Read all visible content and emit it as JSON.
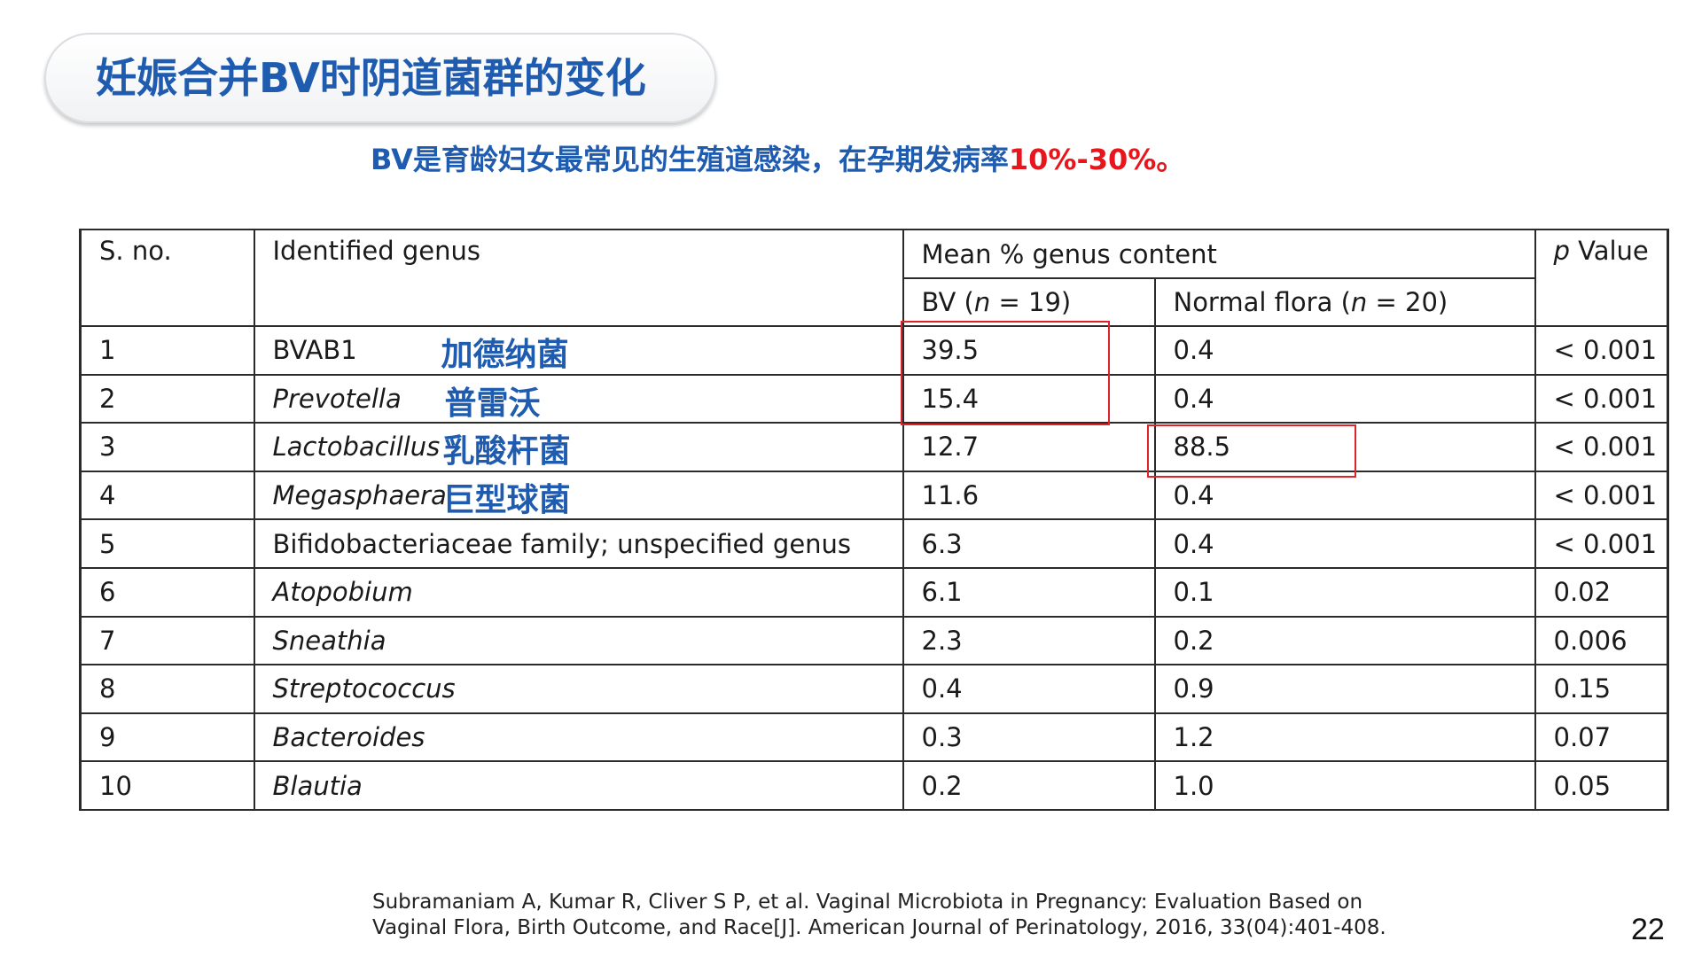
{
  "slide": {
    "title": "妊娠合并BV时阴道菌群的变化",
    "subtitle_main": "BV是育龄妇女最常见的生殖道感染，在孕期发病率",
    "subtitle_highlight": "10%-30%。",
    "page_number": "22",
    "citation_line1": "Subramaniam A, Kumar R, Cliver S P, et al. Vaginal Microbiota in Pregnancy: Evaluation Based on",
    "citation_line2": "Vaginal Flora, Birth Outcome, and Race[J]. American Journal of Perinatology, 2016, 33(04):401-408."
  },
  "table": {
    "headers": {
      "sno": "S. no.",
      "genus": "Identified genus",
      "mean": "Mean % genus content",
      "bv_pre": "BV (",
      "bv_n": "n",
      "bv_post": " = 19)",
      "nf_pre": "Normal flora (",
      "nf_n": "n",
      "nf_post": " = 20)",
      "p_letter": "p",
      "p_rest": " Value"
    },
    "rows": [
      {
        "sno": "1",
        "genus": "BVAB1",
        "cn": "加德纳菌",
        "bv": "39.5",
        "nf": "0.4",
        "p": "< 0.001"
      },
      {
        "sno": "2",
        "genus": "Prevotella",
        "cn": "普雷沃",
        "bv": "15.4",
        "nf": "0.4",
        "p": "< 0.001"
      },
      {
        "sno": "3",
        "genus": "Lactobacillus",
        "cn": "乳酸杆菌",
        "bv": "12.7",
        "nf": "88.5",
        "p": "< 0.001"
      },
      {
        "sno": "4",
        "genus": "Megasphaera",
        "cn": "巨型球菌",
        "bv": "11.6",
        "nf": "0.4",
        "p": "< 0.001"
      },
      {
        "sno": "5",
        "genus": "Bifidobacteriaceae family; unspecified genus",
        "cn": "",
        "bv": "6.3",
        "nf": "0.4",
        "p": "< 0.001"
      },
      {
        "sno": "6",
        "genus": "Atopobium",
        "cn": "",
        "bv": "6.1",
        "nf": "0.1",
        "p": "0.02"
      },
      {
        "sno": "7",
        "genus": "Sneathia",
        "cn": "",
        "bv": "2.3",
        "nf": "0.2",
        "p": "0.006"
      },
      {
        "sno": "8",
        "genus": "Streptococcus",
        "cn": "",
        "bv": "0.4",
        "nf": "0.9",
        "p": "0.15"
      },
      {
        "sno": "9",
        "genus": "Bacteroides",
        "cn": "",
        "bv": "0.3",
        "nf": "1.2",
        "p": "0.07"
      },
      {
        "sno": "10",
        "genus": "Blautia",
        "cn": "",
        "bv": "0.2",
        "nf": "1.0",
        "p": "0.05"
      }
    ]
  },
  "colors": {
    "title_blue": "#1f5cb0",
    "highlight_red": "#e8161c",
    "box_red": "#e0232a"
  }
}
